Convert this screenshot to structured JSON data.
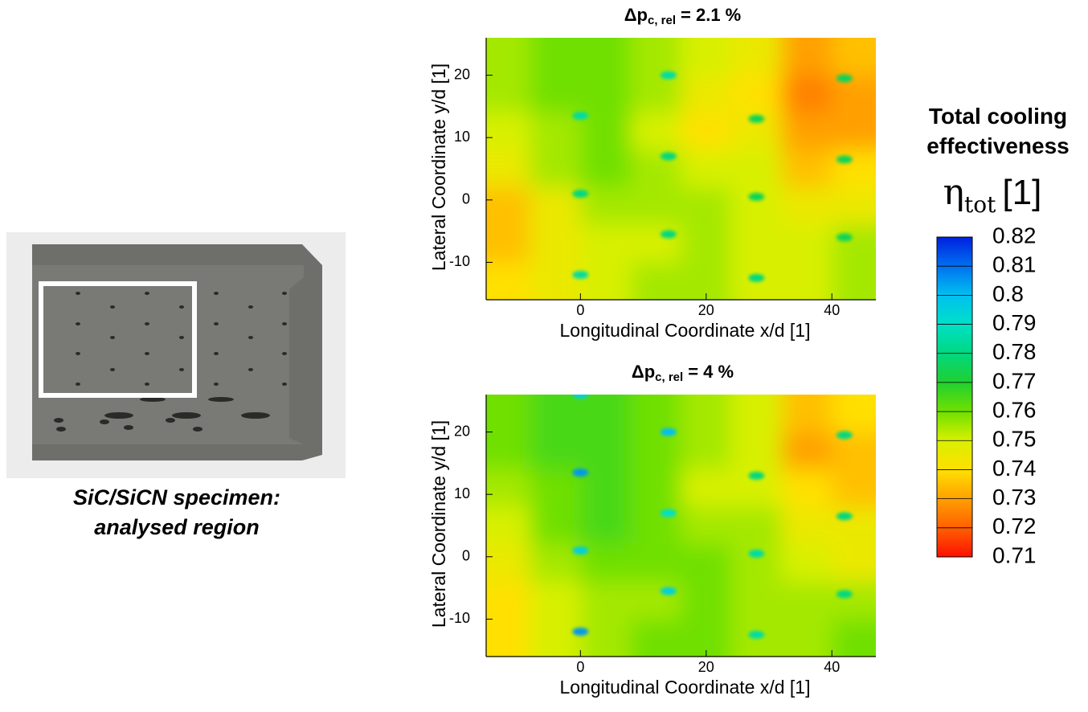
{
  "caption": [
    "SiC/SiCN specimen:",
    "analysed region"
  ],
  "colorbar": {
    "title": "Total cooling effectiveness",
    "symbol": "η",
    "subscript": "tot",
    "unit": "[1]",
    "ticks": [
      0.71,
      0.72,
      0.73,
      0.74,
      0.75,
      0.76,
      0.77,
      0.78,
      0.79,
      0.8,
      0.81,
      0.82
    ],
    "colors": [
      "#ff1000",
      "#ff6000",
      "#ffa000",
      "#ffe000",
      "#d8f000",
      "#70e000",
      "#20d030",
      "#00d880",
      "#00e0c8",
      "#00c0f0",
      "#0070f0",
      "#0020e0"
    ]
  },
  "chart_data": [
    {
      "type": "heatmap",
      "title_symbol": "Δp",
      "title_subscript": "c, rel",
      "title_rest": "= 2.1 %",
      "x_label": "Longitudinal Coordinate x/d [1]",
      "y_label": "Lateral Coordinate y/d [1]",
      "xlim": [
        -15,
        47
      ],
      "ylim": [
        -16,
        26
      ],
      "xticks": [
        0,
        20,
        40
      ],
      "yticks": [
        -10,
        0,
        10,
        20
      ],
      "x": [
        -12,
        -4,
        4,
        12,
        20,
        28,
        36,
        44
      ],
      "y": [
        23,
        17,
        11,
        5,
        -1,
        -7,
        -13
      ],
      "values": [
        [
          0.755,
          0.76,
          0.76,
          0.755,
          0.75,
          0.745,
          0.73,
          0.735
        ],
        [
          0.755,
          0.76,
          0.76,
          0.755,
          0.745,
          0.74,
          0.725,
          0.73
        ],
        [
          0.75,
          0.755,
          0.76,
          0.75,
          0.74,
          0.745,
          0.73,
          0.73
        ],
        [
          0.745,
          0.755,
          0.76,
          0.755,
          0.75,
          0.75,
          0.735,
          0.74
        ],
        [
          0.735,
          0.745,
          0.755,
          0.755,
          0.755,
          0.75,
          0.745,
          0.745
        ],
        [
          0.735,
          0.745,
          0.75,
          0.75,
          0.755,
          0.75,
          0.75,
          0.755
        ],
        [
          0.74,
          0.745,
          0.75,
          0.755,
          0.755,
          0.75,
          0.75,
          0.755
        ]
      ],
      "holes": [
        {
          "x": 0,
          "y": 13.5,
          "value": 0.785
        },
        {
          "x": 0,
          "y": 1,
          "value": 0.78
        },
        {
          "x": 0,
          "y": -12,
          "value": 0.785
        },
        {
          "x": 14,
          "y": 20,
          "value": 0.785
        },
        {
          "x": 14,
          "y": 7,
          "value": 0.78
        },
        {
          "x": 14,
          "y": -5.5,
          "value": 0.78
        },
        {
          "x": 28,
          "y": 13,
          "value": 0.775
        },
        {
          "x": 28,
          "y": 0.5,
          "value": 0.775
        },
        {
          "x": 28,
          "y": -12.5,
          "value": 0.78
        },
        {
          "x": 42,
          "y": 19.5,
          "value": 0.775
        },
        {
          "x": 42,
          "y": 6.5,
          "value": 0.775
        },
        {
          "x": 42,
          "y": -6,
          "value": 0.775
        }
      ]
    },
    {
      "type": "heatmap",
      "title_symbol": "Δp",
      "title_subscript": "c, rel",
      "title_rest": "= 4 %",
      "x_label": "Longitudinal Coordinate x/d [1]",
      "y_label": "Lateral Coordinate y/d [1]",
      "xlim": [
        -15,
        47
      ],
      "ylim": [
        -16,
        26
      ],
      "xticks": [
        0,
        20,
        40
      ],
      "yticks": [
        -10,
        0,
        10,
        20
      ],
      "x": [
        -12,
        -4,
        4,
        12,
        20,
        28,
        36,
        44
      ],
      "y": [
        23,
        17,
        11,
        5,
        -1,
        -7,
        -13
      ],
      "values": [
        [
          0.76,
          0.765,
          0.765,
          0.76,
          0.755,
          0.75,
          0.735,
          0.74
        ],
        [
          0.76,
          0.765,
          0.765,
          0.76,
          0.755,
          0.75,
          0.73,
          0.735
        ],
        [
          0.755,
          0.76,
          0.765,
          0.76,
          0.75,
          0.75,
          0.74,
          0.735
        ],
        [
          0.75,
          0.76,
          0.765,
          0.76,
          0.755,
          0.755,
          0.745,
          0.745
        ],
        [
          0.745,
          0.755,
          0.76,
          0.76,
          0.76,
          0.755,
          0.75,
          0.745
        ],
        [
          0.74,
          0.75,
          0.755,
          0.755,
          0.76,
          0.755,
          0.755,
          0.755
        ],
        [
          0.74,
          0.75,
          0.755,
          0.76,
          0.76,
          0.755,
          0.755,
          0.76
        ]
      ],
      "holes": [
        {
          "x": 0,
          "y": 13.5,
          "value": 0.805
        },
        {
          "x": 0,
          "y": 1,
          "value": 0.795
        },
        {
          "x": 0,
          "y": -12,
          "value": 0.805
        },
        {
          "x": 0,
          "y": 26,
          "value": 0.795
        },
        {
          "x": 14,
          "y": 20,
          "value": 0.8
        },
        {
          "x": 14,
          "y": 7,
          "value": 0.79
        },
        {
          "x": 14,
          "y": -5.5,
          "value": 0.795
        },
        {
          "x": 28,
          "y": 13,
          "value": 0.78
        },
        {
          "x": 28,
          "y": 0.5,
          "value": 0.785
        },
        {
          "x": 28,
          "y": -12.5,
          "value": 0.785
        },
        {
          "x": 42,
          "y": 19.5,
          "value": 0.78
        },
        {
          "x": 42,
          "y": 6.5,
          "value": 0.78
        },
        {
          "x": 42,
          "y": -6,
          "value": 0.78
        }
      ]
    }
  ]
}
